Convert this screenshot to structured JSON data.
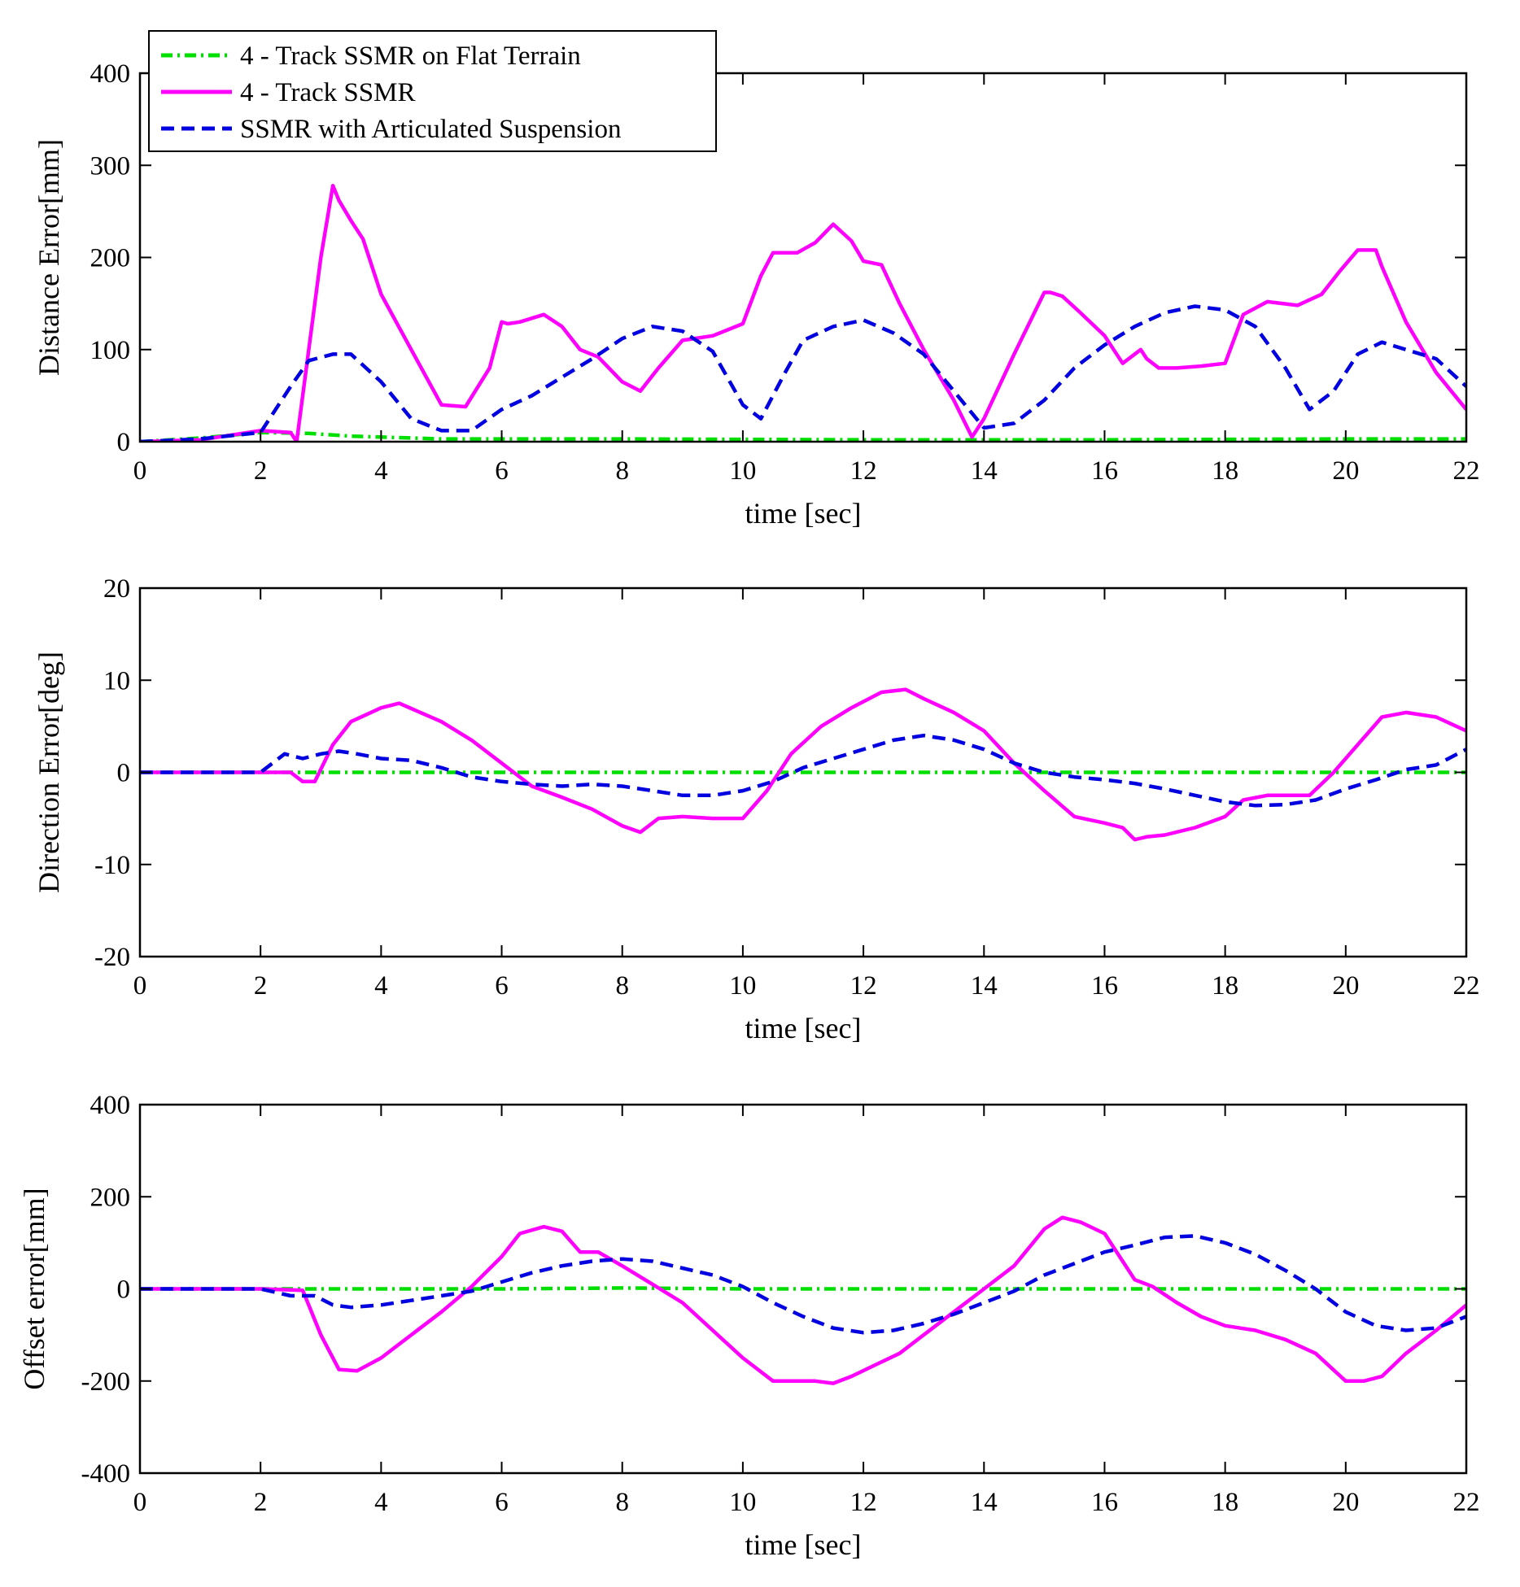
{
  "chart_data": [
    {
      "type": "line",
      "xlabel": "time [sec]",
      "ylabel": "Distance Error[mm]",
      "xlim": [
        0,
        22
      ],
      "ylim": [
        0,
        400
      ],
      "xticks": [
        "0",
        "2",
        "4",
        "6",
        "8",
        "10",
        "12",
        "14",
        "16",
        "18",
        "20",
        "22"
      ],
      "yticks": [
        "0",
        "100",
        "200",
        "300",
        "400"
      ],
      "legend": {
        "position": "top-left",
        "entries": [
          "4 - Track SSMR on Flat Terrain",
          "4 - Track SSMR",
          "SSMR with Articulated Suspension"
        ]
      },
      "series": [
        {
          "name": "4 - Track SSMR on Flat Terrain",
          "color": "#00e000",
          "style": "dashdot",
          "x": [
            0,
            1,
            2,
            2.8,
            3.5,
            5,
            8,
            12,
            16,
            20,
            22
          ],
          "y": [
            0,
            4,
            10,
            9,
            6,
            3,
            3,
            2,
            2,
            3,
            3
          ]
        },
        {
          "name": "4 - Track SSMR",
          "color": "#ff00ff",
          "style": "solid",
          "x": [
            0,
            1,
            2,
            2.5,
            2.6,
            3,
            3.2,
            3.3,
            3.5,
            3.7,
            4,
            4.5,
            5,
            5.4,
            5.8,
            6,
            6.1,
            6.3,
            6.7,
            7,
            7.3,
            7.6,
            8,
            8.3,
            8.6,
            9,
            9.5,
            10,
            10.3,
            10.5,
            10.9,
            11.2,
            11.5,
            11.8,
            12,
            12.3,
            12.6,
            13,
            13.5,
            13.8,
            14,
            14.5,
            15,
            15.1,
            15.3,
            15.6,
            16,
            16.3,
            16.5,
            16.6,
            16.7,
            16.9,
            17.2,
            17.6,
            18,
            18.3,
            18.7,
            19.2,
            19.6,
            19.9,
            20.2,
            20.5,
            20.6,
            21,
            21.5,
            22
          ],
          "y": [
            0,
            2,
            12,
            10,
            0,
            200,
            278,
            262,
            240,
            220,
            160,
            100,
            40,
            38,
            80,
            130,
            128,
            130,
            138,
            125,
            100,
            92,
            65,
            55,
            80,
            110,
            115,
            128,
            180,
            205,
            205,
            216,
            236,
            218,
            196,
            192,
            150,
            100,
            45,
            5,
            25,
            95,
            162,
            162,
            158,
            140,
            115,
            85,
            95,
            100,
            90,
            80,
            80,
            82,
            85,
            138,
            152,
            148,
            160,
            185,
            208,
            208,
            190,
            130,
            75,
            35
          ]
        },
        {
          "name": "SSMR with Articulated Suspension",
          "color": "#0000e0",
          "style": "dashed",
          "x": [
            0,
            1,
            2,
            2.5,
            2.8,
            3.2,
            3.5,
            4,
            4.5,
            5,
            5.5,
            6,
            6.5,
            7,
            7.5,
            8,
            8.5,
            9,
            9.5,
            10,
            10.3,
            10.7,
            11,
            11.5,
            12,
            12.5,
            13,
            13.5,
            14,
            14.5,
            15,
            15.5,
            16,
            16.5,
            17,
            17.5,
            18,
            18.5,
            19,
            19.4,
            19.8,
            20.2,
            20.6,
            21,
            21.5,
            22
          ],
          "y": [
            0,
            3,
            10,
            60,
            88,
            95,
            95,
            65,
            25,
            12,
            12,
            35,
            50,
            70,
            90,
            112,
            125,
            120,
            98,
            40,
            25,
            75,
            110,
            125,
            132,
            118,
            95,
            55,
            15,
            20,
            45,
            80,
            105,
            125,
            140,
            147,
            143,
            125,
            80,
            35,
            55,
            95,
            108,
            100,
            90,
            60
          ]
        }
      ]
    },
    {
      "type": "line",
      "xlabel": "time [sec]",
      "ylabel": "Direction Error[deg]",
      "xlim": [
        0,
        22
      ],
      "ylim": [
        -20,
        20
      ],
      "xticks": [
        "0",
        "2",
        "4",
        "6",
        "8",
        "10",
        "12",
        "14",
        "16",
        "18",
        "20",
        "22"
      ],
      "yticks": [
        "-20",
        "-10",
        "0",
        "10",
        "20"
      ],
      "series": [
        {
          "name": "4 - Track SSMR on Flat Terrain",
          "color": "#00e000",
          "style": "dashdot",
          "x": [
            0,
            2,
            4,
            6,
            8,
            10,
            12,
            14,
            16,
            18,
            20,
            22
          ],
          "y": [
            0,
            0,
            0,
            0,
            0,
            0,
            0,
            0,
            0,
            0,
            0,
            0
          ]
        },
        {
          "name": "4 - Track SSMR",
          "color": "#ff00ff",
          "style": "solid",
          "x": [
            0,
            2,
            2.5,
            2.7,
            2.9,
            3.2,
            3.5,
            4,
            4.3,
            5,
            5.5,
            6,
            6.5,
            7,
            7.5,
            8,
            8.3,
            8.6,
            9,
            9.5,
            10,
            10.4,
            10.8,
            11.3,
            11.8,
            12.3,
            12.7,
            13,
            13.5,
            14,
            14.5,
            15,
            15.5,
            16,
            16.3,
            16.5,
            16.7,
            17,
            17.5,
            18,
            18.3,
            18.7,
            19,
            19.4,
            19.8,
            20.2,
            20.6,
            21,
            21.5,
            22
          ],
          "y": [
            0,
            0,
            0,
            -1,
            -1,
            3,
            5.5,
            7,
            7.5,
            5.5,
            3.5,
            1,
            -1.5,
            -2.7,
            -4,
            -5.8,
            -6.5,
            -5,
            -4.8,
            -5,
            -5,
            -2,
            2,
            5,
            7,
            8.7,
            9,
            8,
            6.5,
            4.5,
            1,
            -2,
            -4.8,
            -5.5,
            -6,
            -7.3,
            -7,
            -6.8,
            -6,
            -4.8,
            -3,
            -2.5,
            -2.5,
            -2.5,
            0,
            3,
            6,
            6.5,
            6,
            4.5
          ]
        },
        {
          "name": "SSMR with Articulated Suspension",
          "color": "#0000e0",
          "style": "dashed",
          "x": [
            0,
            2,
            2.4,
            2.7,
            3,
            3.3,
            3.6,
            4,
            4.5,
            5,
            5.5,
            6,
            6.5,
            7,
            7.5,
            8,
            8.5,
            9,
            9.5,
            10,
            10.5,
            11,
            11.5,
            12,
            12.5,
            13,
            13.5,
            14,
            14.5,
            15,
            15.5,
            16,
            16.5,
            17,
            17.5,
            18,
            18.5,
            19,
            19.5,
            20,
            20.5,
            21,
            21.5,
            22
          ],
          "y": [
            0,
            0,
            2,
            1.5,
            2,
            2.3,
            2,
            1.5,
            1.3,
            0.5,
            -0.5,
            -1,
            -1.3,
            -1.5,
            -1.3,
            -1.5,
            -2,
            -2.5,
            -2.5,
            -2,
            -1,
            0.5,
            1.5,
            2.5,
            3.5,
            4,
            3.5,
            2.5,
            1,
            0,
            -0.5,
            -0.8,
            -1.2,
            -1.8,
            -2.5,
            -3.2,
            -3.6,
            -3.5,
            -3,
            -1.8,
            -0.8,
            0.3,
            0.8,
            2.5
          ]
        }
      ]
    },
    {
      "type": "line",
      "xlabel": "time [sec]",
      "ylabel": "Offset error[mm]",
      "xlim": [
        0,
        22
      ],
      "ylim": [
        -400,
        400
      ],
      "xticks": [
        "0",
        "2",
        "4",
        "6",
        "8",
        "10",
        "12",
        "14",
        "16",
        "18",
        "20",
        "22"
      ],
      "yticks": [
        "-400",
        "-200",
        "0",
        "200",
        "400"
      ],
      "series": [
        {
          "name": "4 - Track SSMR on Flat Terrain",
          "color": "#00e000",
          "style": "dashdot",
          "x": [
            0,
            2,
            4,
            6,
            8,
            10,
            12,
            14,
            16,
            18,
            20,
            22
          ],
          "y": [
            0,
            0,
            0,
            0,
            2,
            0,
            0,
            0,
            0,
            0,
            0,
            0
          ]
        },
        {
          "name": "4 - Track SSMR",
          "color": "#ff00ff",
          "style": "solid",
          "x": [
            0,
            2,
            2.7,
            3,
            3.3,
            3.6,
            4,
            4.5,
            5,
            5.5,
            6,
            6.3,
            6.7,
            7,
            7.3,
            7.6,
            8,
            8.5,
            9,
            9.5,
            10,
            10.5,
            10.8,
            11.2,
            11.5,
            11.8,
            12.2,
            12.6,
            13,
            13.5,
            14,
            14.5,
            15,
            15.3,
            15.6,
            16,
            16.3,
            16.5,
            16.8,
            17.2,
            17.6,
            18,
            18.5,
            19,
            19.5,
            20,
            20.3,
            20.6,
            21,
            21.5,
            22
          ],
          "y": [
            0,
            0,
            -3,
            -100,
            -175,
            -178,
            -150,
            -100,
            -50,
            5,
            70,
            120,
            135,
            125,
            80,
            80,
            50,
            10,
            -30,
            -90,
            -150,
            -200,
            -200,
            -200,
            -205,
            -190,
            -165,
            -140,
            -100,
            -50,
            0,
            50,
            130,
            155,
            145,
            120,
            60,
            20,
            5,
            -30,
            -60,
            -80,
            -90,
            -110,
            -140,
            -200,
            -200,
            -190,
            -140,
            -90,
            -35
          ]
        },
        {
          "name": "SSMR with Articulated Suspension",
          "color": "#0000e0",
          "style": "dashed",
          "x": [
            0,
            2,
            2.5,
            2.9,
            3.2,
            3.5,
            4,
            4.5,
            5,
            5.5,
            6,
            6.5,
            7,
            7.5,
            8,
            8.5,
            9,
            9.5,
            10,
            10.5,
            11,
            11.5,
            12,
            12.5,
            13,
            13.5,
            14,
            14.5,
            15,
            15.5,
            16,
            16.5,
            17,
            17.5,
            18,
            18.5,
            19,
            19.5,
            20,
            20.5,
            21,
            21.5,
            22
          ],
          "y": [
            0,
            0,
            -15,
            -15,
            -35,
            -40,
            -35,
            -25,
            -15,
            -5,
            15,
            35,
            50,
            60,
            65,
            60,
            45,
            30,
            5,
            -30,
            -60,
            -85,
            -95,
            -90,
            -75,
            -55,
            -30,
            -5,
            30,
            55,
            80,
            95,
            112,
            115,
            100,
            75,
            40,
            0,
            -50,
            -80,
            -90,
            -85,
            -60
          ]
        }
      ]
    }
  ]
}
